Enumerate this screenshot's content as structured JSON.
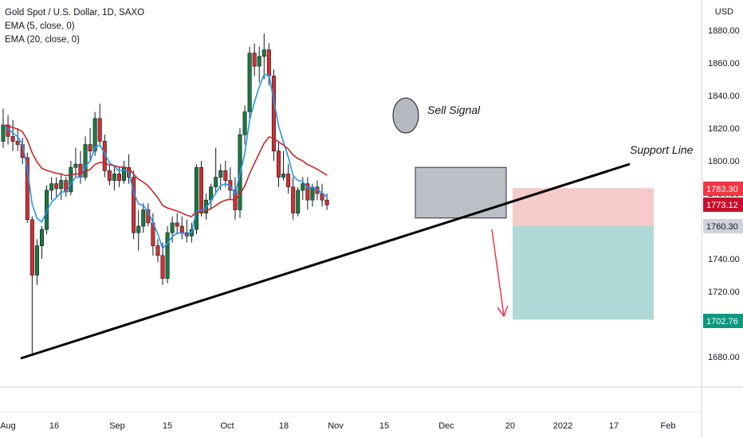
{
  "legend": {
    "symbol": "Gold Spot / U.S. Dollar, 1D, SAXO",
    "ema5": "EMA (5, close, 0)",
    "ema20": "EMA (20, close, 0)"
  },
  "axis": {
    "unit": "USD"
  },
  "annotations": {
    "sell_signal": "Sell Signal",
    "support_line": "Support Line"
  },
  "price_tags": [
    {
      "label": "1783.30",
      "value": 1783.3,
      "color": "#f23645",
      "text_color": "#ffffff"
    },
    {
      "label": "1773.12",
      "value": 1773.12,
      "color": "#c8102e",
      "text_color": "#ffffff"
    },
    {
      "label": "1760.30",
      "value": 1760.3,
      "color": "#cfd3dc",
      "text_color": "#131722"
    },
    {
      "label": "1702.76",
      "value": 1702.76,
      "color": "#089981",
      "text_color": "#ffffff"
    }
  ],
  "colors": {
    "bull": "#1b7a3d",
    "bear": "#d32f2f",
    "ema5": "#2196f3",
    "ema20": "#c62828",
    "loss_zone": "#f2b8b8",
    "profit_zone": "#a6d5d3"
  },
  "chart_data": {
    "type": "candlestick",
    "title": "Gold Spot / U.S. Dollar, 1D, SAXO",
    "ylabel": "USD",
    "ylim": [
      1660,
      1890
    ],
    "yticks": [
      1680,
      1700,
      1720,
      1740,
      1760,
      1780,
      1800,
      1820,
      1840,
      1860,
      1880
    ],
    "x_tick_labels": [
      "Aug",
      "16",
      "Sep",
      "15",
      "Oct",
      "18",
      "Nov",
      "15",
      "Dec",
      "20",
      "2022",
      "17",
      "Feb"
    ],
    "candles": [
      {
        "o": 1812,
        "h": 1832,
        "l": 1808,
        "c": 1822
      },
      {
        "o": 1822,
        "h": 1828,
        "l": 1810,
        "c": 1815
      },
      {
        "o": 1815,
        "h": 1825,
        "l": 1806,
        "c": 1812
      },
      {
        "o": 1812,
        "h": 1820,
        "l": 1806,
        "c": 1810
      },
      {
        "o": 1810,
        "h": 1814,
        "l": 1798,
        "c": 1802
      },
      {
        "o": 1802,
        "h": 1805,
        "l": 1762,
        "c": 1764
      },
      {
        "o": 1764,
        "h": 1766,
        "l": 1682,
        "c": 1730
      },
      {
        "o": 1730,
        "h": 1752,
        "l": 1724,
        "c": 1748
      },
      {
        "o": 1748,
        "h": 1760,
        "l": 1740,
        "c": 1758
      },
      {
        "o": 1758,
        "h": 1785,
        "l": 1755,
        "c": 1782
      },
      {
        "o": 1782,
        "h": 1790,
        "l": 1776,
        "c": 1786
      },
      {
        "o": 1786,
        "h": 1790,
        "l": 1778,
        "c": 1783
      },
      {
        "o": 1783,
        "h": 1792,
        "l": 1776,
        "c": 1788
      },
      {
        "o": 1788,
        "h": 1790,
        "l": 1778,
        "c": 1781
      },
      {
        "o": 1781,
        "h": 1800,
        "l": 1779,
        "c": 1796
      },
      {
        "o": 1796,
        "h": 1808,
        "l": 1790,
        "c": 1798
      },
      {
        "o": 1798,
        "h": 1806,
        "l": 1786,
        "c": 1790
      },
      {
        "o": 1790,
        "h": 1815,
        "l": 1788,
        "c": 1810
      },
      {
        "o": 1810,
        "h": 1820,
        "l": 1800,
        "c": 1806
      },
      {
        "o": 1806,
        "h": 1830,
        "l": 1803,
        "c": 1826
      },
      {
        "o": 1826,
        "h": 1835,
        "l": 1810,
        "c": 1812
      },
      {
        "o": 1812,
        "h": 1816,
        "l": 1790,
        "c": 1794
      },
      {
        "o": 1794,
        "h": 1798,
        "l": 1785,
        "c": 1788
      },
      {
        "o": 1788,
        "h": 1796,
        "l": 1782,
        "c": 1792
      },
      {
        "o": 1792,
        "h": 1796,
        "l": 1784,
        "c": 1788
      },
      {
        "o": 1788,
        "h": 1800,
        "l": 1786,
        "c": 1796
      },
      {
        "o": 1796,
        "h": 1804,
        "l": 1786,
        "c": 1790
      },
      {
        "o": 1790,
        "h": 1794,
        "l": 1752,
        "c": 1756
      },
      {
        "o": 1756,
        "h": 1770,
        "l": 1745,
        "c": 1760
      },
      {
        "o": 1760,
        "h": 1774,
        "l": 1756,
        "c": 1770
      },
      {
        "o": 1770,
        "h": 1774,
        "l": 1760,
        "c": 1762
      },
      {
        "o": 1762,
        "h": 1768,
        "l": 1742,
        "c": 1748
      },
      {
        "o": 1748,
        "h": 1752,
        "l": 1738,
        "c": 1742
      },
      {
        "o": 1742,
        "h": 1750,
        "l": 1724,
        "c": 1728
      },
      {
        "o": 1728,
        "h": 1760,
        "l": 1725,
        "c": 1756
      },
      {
        "o": 1756,
        "h": 1766,
        "l": 1750,
        "c": 1762
      },
      {
        "o": 1762,
        "h": 1768,
        "l": 1755,
        "c": 1760
      },
      {
        "o": 1760,
        "h": 1766,
        "l": 1752,
        "c": 1756
      },
      {
        "o": 1756,
        "h": 1764,
        "l": 1750,
        "c": 1754
      },
      {
        "o": 1754,
        "h": 1762,
        "l": 1750,
        "c": 1758
      },
      {
        "o": 1758,
        "h": 1798,
        "l": 1755,
        "c": 1796
      },
      {
        "o": 1796,
        "h": 1800,
        "l": 1766,
        "c": 1768
      },
      {
        "o": 1768,
        "h": 1780,
        "l": 1764,
        "c": 1776
      },
      {
        "o": 1776,
        "h": 1786,
        "l": 1770,
        "c": 1784
      },
      {
        "o": 1784,
        "h": 1808,
        "l": 1780,
        "c": 1790
      },
      {
        "o": 1790,
        "h": 1798,
        "l": 1782,
        "c": 1794
      },
      {
        "o": 1794,
        "h": 1800,
        "l": 1784,
        "c": 1788
      },
      {
        "o": 1788,
        "h": 1796,
        "l": 1776,
        "c": 1782
      },
      {
        "o": 1782,
        "h": 1790,
        "l": 1764,
        "c": 1770
      },
      {
        "o": 1770,
        "h": 1820,
        "l": 1765,
        "c": 1816
      },
      {
        "o": 1816,
        "h": 1834,
        "l": 1810,
        "c": 1830
      },
      {
        "o": 1830,
        "h": 1870,
        "l": 1826,
        "c": 1866
      },
      {
        "o": 1866,
        "h": 1872,
        "l": 1852,
        "c": 1858
      },
      {
        "o": 1858,
        "h": 1870,
        "l": 1848,
        "c": 1864
      },
      {
        "o": 1864,
        "h": 1878,
        "l": 1850,
        "c": 1868
      },
      {
        "o": 1868,
        "h": 1872,
        "l": 1846,
        "c": 1852
      },
      {
        "o": 1852,
        "h": 1856,
        "l": 1800,
        "c": 1806
      },
      {
        "o": 1806,
        "h": 1812,
        "l": 1784,
        "c": 1790
      },
      {
        "o": 1790,
        "h": 1806,
        "l": 1788,
        "c": 1792
      },
      {
        "o": 1792,
        "h": 1798,
        "l": 1780,
        "c": 1784
      },
      {
        "o": 1784,
        "h": 1790,
        "l": 1764,
        "c": 1768
      },
      {
        "o": 1768,
        "h": 1784,
        "l": 1766,
        "c": 1782
      },
      {
        "o": 1782,
        "h": 1790,
        "l": 1776,
        "c": 1786
      },
      {
        "o": 1786,
        "h": 1790,
        "l": 1770,
        "c": 1776
      },
      {
        "o": 1776,
        "h": 1786,
        "l": 1772,
        "c": 1784
      },
      {
        "o": 1784,
        "h": 1788,
        "l": 1776,
        "c": 1780
      },
      {
        "o": 1780,
        "h": 1786,
        "l": 1772,
        "c": 1776
      },
      {
        "o": 1776,
        "h": 1780,
        "l": 1770,
        "c": 1773
      }
    ],
    "stop_loss_zone": {
      "from": 1760.3,
      "to": 1783.3
    },
    "take_profit_zone": {
      "from": 1702.76,
      "to": 1760.3
    },
    "consolidation_box": {
      "from": 1765,
      "to": 1796
    }
  }
}
